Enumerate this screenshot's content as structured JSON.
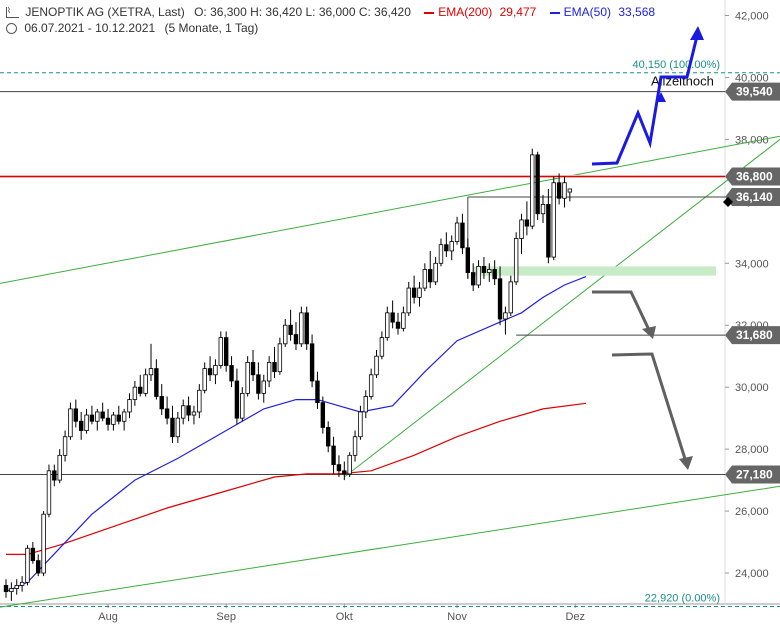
{
  "header": {
    "line1": {
      "icon": "chart-icon",
      "title": "JENOPTIK AG (XETRA, Last)",
      "ohlc": "O: 36,300   H: 36,420   L: 36,000   C: 36,420",
      "ema200_label": "EMA(200)",
      "ema200_value": "29,477",
      "ema50_label": "EMA(50)",
      "ema50_value": "33,568"
    },
    "line2": {
      "icon": "clock-icon",
      "range": "06.07.2021 - 10.12.2021",
      "period": "(5 Monate, 1 Tag)"
    }
  },
  "colors": {
    "up": "#ffffff",
    "down": "#000000",
    "ema200": "#e00000",
    "ema50": "#2020e0",
    "trend": "#3cae3c",
    "fib": "#1a8f8a",
    "arrow_up": "#1a1ae0",
    "arrow_down": "#606060",
    "zone": "#c7ecc7",
    "box": "#666666"
  },
  "chart_data": {
    "type": "candlestick",
    "ylim": [
      23000,
      42500
    ],
    "y_ticks": [
      "24,000",
      "26,000",
      "28,000",
      "30,000",
      "32,000",
      "34,000",
      "36,000",
      "38,000",
      "40,000",
      "42,000"
    ],
    "y_tick_values": [
      24000,
      26000,
      28000,
      30000,
      32000,
      34000,
      36000,
      38000,
      40000,
      42000
    ],
    "x_labels": [
      {
        "label": "Aug",
        "day": 19
      },
      {
        "label": "Sep",
        "day": 41
      },
      {
        "label": "Okt",
        "day": 63
      },
      {
        "label": "Nov",
        "day": 84
      },
      {
        "label": "Dez",
        "day": 106
      }
    ],
    "candles": [
      [
        23.6,
        23.8,
        23.2,
        23.4
      ],
      [
        23.4,
        23.7,
        23.1,
        23.5
      ],
      [
        23.5,
        23.8,
        23.3,
        23.6
      ],
      [
        23.6,
        23.9,
        23.4,
        23.7
      ],
      [
        23.7,
        24.9,
        23.6,
        24.8
      ],
      [
        24.8,
        25.0,
        24.3,
        24.4
      ],
      [
        24.4,
        24.6,
        23.9,
        24.0
      ],
      [
        24.0,
        26.0,
        23.9,
        25.9
      ],
      [
        25.9,
        27.5,
        25.8,
        27.3
      ],
      [
        27.3,
        27.5,
        26.8,
        27.0
      ],
      [
        27.0,
        28.0,
        26.9,
        27.8
      ],
      [
        27.8,
        28.6,
        27.6,
        28.4
      ],
      [
        28.4,
        29.5,
        28.3,
        29.3
      ],
      [
        29.3,
        29.6,
        28.7,
        28.9
      ],
      [
        28.9,
        29.2,
        28.3,
        28.6
      ],
      [
        28.6,
        29.3,
        28.5,
        29.1
      ],
      [
        29.1,
        29.4,
        28.8,
        28.9
      ],
      [
        28.9,
        29.3,
        28.6,
        29.2
      ],
      [
        29.2,
        29.5,
        28.9,
        29.0
      ],
      [
        29.0,
        29.3,
        28.6,
        28.8
      ],
      [
        28.8,
        29.2,
        28.6,
        29.1
      ],
      [
        29.1,
        29.4,
        28.8,
        28.9
      ],
      [
        28.9,
        29.3,
        28.6,
        29.2
      ],
      [
        29.2,
        29.8,
        29.0,
        29.6
      ],
      [
        29.6,
        30.2,
        29.4,
        30.0
      ],
      [
        30.0,
        30.4,
        29.7,
        29.8
      ],
      [
        29.8,
        30.6,
        29.7,
        30.4
      ],
      [
        30.4,
        31.4,
        30.2,
        30.6
      ],
      [
        30.6,
        30.9,
        29.6,
        29.7
      ],
      [
        29.7,
        30.1,
        29.1,
        29.3
      ],
      [
        29.3,
        29.7,
        28.8,
        29.0
      ],
      [
        29.0,
        29.4,
        28.2,
        28.4
      ],
      [
        28.4,
        29.2,
        28.2,
        29.0
      ],
      [
        29.0,
        29.6,
        28.8,
        29.4
      ],
      [
        29.4,
        29.7,
        28.9,
        29.1
      ],
      [
        29.1,
        29.4,
        28.8,
        29.2
      ],
      [
        29.2,
        30.1,
        29.0,
        29.9
      ],
      [
        29.9,
        30.8,
        29.8,
        30.6
      ],
      [
        30.6,
        31.0,
        30.2,
        30.4
      ],
      [
        30.4,
        30.9,
        30.1,
        30.7
      ],
      [
        30.7,
        31.8,
        30.6,
        31.6
      ],
      [
        31.6,
        31.8,
        30.5,
        30.7
      ],
      [
        30.7,
        31.0,
        30.0,
        30.2
      ],
      [
        30.2,
        30.6,
        28.8,
        29.0
      ],
      [
        29.0,
        30.0,
        28.9,
        29.8
      ],
      [
        29.8,
        31.0,
        29.7,
        30.8
      ],
      [
        30.8,
        31.2,
        30.2,
        30.4
      ],
      [
        30.4,
        30.8,
        29.6,
        29.8
      ],
      [
        29.8,
        30.4,
        29.5,
        30.2
      ],
      [
        30.2,
        31.0,
        30.0,
        30.8
      ],
      [
        30.8,
        31.3,
        30.3,
        30.5
      ],
      [
        30.5,
        31.6,
        30.4,
        31.4
      ],
      [
        31.4,
        32.2,
        31.3,
        32.0
      ],
      [
        32.0,
        32.5,
        31.5,
        31.7
      ],
      [
        31.7,
        32.1,
        31.2,
        31.4
      ],
      [
        31.4,
        32.6,
        31.3,
        32.4
      ],
      [
        32.4,
        32.6,
        31.2,
        31.4
      ],
      [
        31.4,
        31.7,
        30.0,
        30.2
      ],
      [
        30.2,
        30.5,
        29.3,
        29.5
      ],
      [
        29.5,
        29.7,
        28.5,
        28.7
      ],
      [
        28.7,
        28.9,
        27.9,
        28.1
      ],
      [
        28.1,
        28.4,
        27.2,
        27.5
      ],
      [
        27.5,
        27.8,
        27.1,
        27.3
      ],
      [
        27.3,
        27.6,
        27.0,
        27.2
      ],
      [
        27.2,
        27.9,
        27.1,
        27.8
      ],
      [
        27.8,
        28.6,
        27.6,
        28.4
      ],
      [
        28.4,
        29.4,
        28.3,
        29.2
      ],
      [
        29.2,
        29.9,
        29.0,
        29.7
      ],
      [
        29.7,
        30.6,
        29.6,
        30.4
      ],
      [
        30.4,
        31.2,
        30.3,
        31.0
      ],
      [
        31.0,
        31.8,
        30.9,
        31.6
      ],
      [
        31.6,
        32.6,
        31.5,
        32.4
      ],
      [
        32.4,
        32.8,
        31.9,
        32.1
      ],
      [
        32.1,
        32.4,
        31.7,
        31.9
      ],
      [
        31.9,
        32.6,
        31.8,
        32.4
      ],
      [
        32.4,
        33.4,
        32.3,
        33.2
      ],
      [
        33.2,
        33.6,
        32.7,
        32.9
      ],
      [
        32.9,
        33.4,
        32.6,
        33.2
      ],
      [
        33.2,
        34.0,
        33.1,
        33.8
      ],
      [
        33.8,
        34.4,
        33.2,
        33.4
      ],
      [
        33.4,
        34.2,
        33.3,
        34.0
      ],
      [
        34.0,
        34.8,
        33.9,
        34.6
      ],
      [
        34.6,
        35.0,
        34.2,
        34.4
      ],
      [
        34.4,
        34.9,
        34.1,
        34.7
      ],
      [
        34.7,
        35.5,
        34.6,
        35.3
      ],
      [
        35.3,
        35.6,
        34.3,
        34.5
      ],
      [
        34.5,
        34.8,
        33.5,
        33.7
      ],
      [
        33.7,
        34.0,
        33.1,
        33.3
      ],
      [
        33.3,
        34.1,
        33.2,
        33.9
      ],
      [
        33.9,
        34.2,
        33.5,
        33.7
      ],
      [
        33.7,
        34.0,
        33.4,
        33.8
      ],
      [
        33.8,
        34.1,
        33.3,
        33.5
      ],
      [
        33.5,
        33.9,
        32.0,
        32.2
      ],
      [
        32.2,
        32.6,
        31.7,
        32.4
      ],
      [
        32.4,
        33.6,
        32.3,
        33.4
      ],
      [
        33.4,
        35.0,
        33.3,
        34.8
      ],
      [
        34.8,
        35.6,
        34.3,
        35.4
      ],
      [
        35.4,
        36.0,
        34.9,
        35.2
      ],
      [
        35.2,
        37.7,
        35.1,
        37.5
      ],
      [
        37.5,
        37.6,
        35.4,
        35.6
      ],
      [
        35.6,
        36.2,
        35.3,
        35.9
      ],
      [
        35.9,
        36.4,
        34.0,
        34.2
      ],
      [
        34.2,
        36.8,
        34.1,
        36.6
      ],
      [
        36.6,
        36.9,
        35.9,
        36.1
      ],
      [
        36.1,
        36.8,
        35.8,
        36.6
      ],
      [
        36.3,
        36.4,
        36.0,
        36.4
      ]
    ],
    "ema200": [
      [
        0,
        24.6
      ],
      [
        4,
        24.6
      ],
      [
        10,
        24.9
      ],
      [
        20,
        25.5
      ],
      [
        30,
        26.1
      ],
      [
        40,
        26.6
      ],
      [
        50,
        27.1
      ],
      [
        56,
        27.2
      ],
      [
        62,
        27.2
      ],
      [
        68,
        27.3
      ],
      [
        76,
        27.8
      ],
      [
        84,
        28.4
      ],
      [
        92,
        28.9
      ],
      [
        100,
        29.3
      ],
      [
        108,
        29.48
      ]
    ],
    "ema50": [
      [
        0,
        23.4
      ],
      [
        4,
        23.7
      ],
      [
        10,
        24.8
      ],
      [
        16,
        25.9
      ],
      [
        24,
        27.0
      ],
      [
        32,
        27.7
      ],
      [
        40,
        28.5
      ],
      [
        48,
        29.3
      ],
      [
        54,
        29.6
      ],
      [
        58,
        29.6
      ],
      [
        62,
        29.4
      ],
      [
        66,
        29.2
      ],
      [
        72,
        29.4
      ],
      [
        78,
        30.5
      ],
      [
        84,
        31.5
      ],
      [
        92,
        32.1
      ],
      [
        96,
        32.4
      ],
      [
        100,
        32.9
      ],
      [
        104,
        33.3
      ],
      [
        108,
        33.57
      ]
    ],
    "levels": [
      {
        "value": "39,540",
        "y": 39.54,
        "style": "line"
      },
      {
        "value": "36,800",
        "y": 36.8,
        "style": "red"
      },
      {
        "value": "36,140",
        "y": 36.14,
        "style": "short"
      },
      {
        "value": "31,680",
        "y": 31.68,
        "style": "short2"
      },
      {
        "value": "27,180",
        "y": 27.18,
        "style": "line"
      }
    ],
    "fib": [
      {
        "label": "40,150 (100.00%)",
        "y": 40.15
      },
      {
        "label": "22,920 (0.00%)",
        "y": 22.92
      }
    ],
    "annotation": "Allzeithoch",
    "zone": [
      33.6,
      33.9
    ]
  }
}
